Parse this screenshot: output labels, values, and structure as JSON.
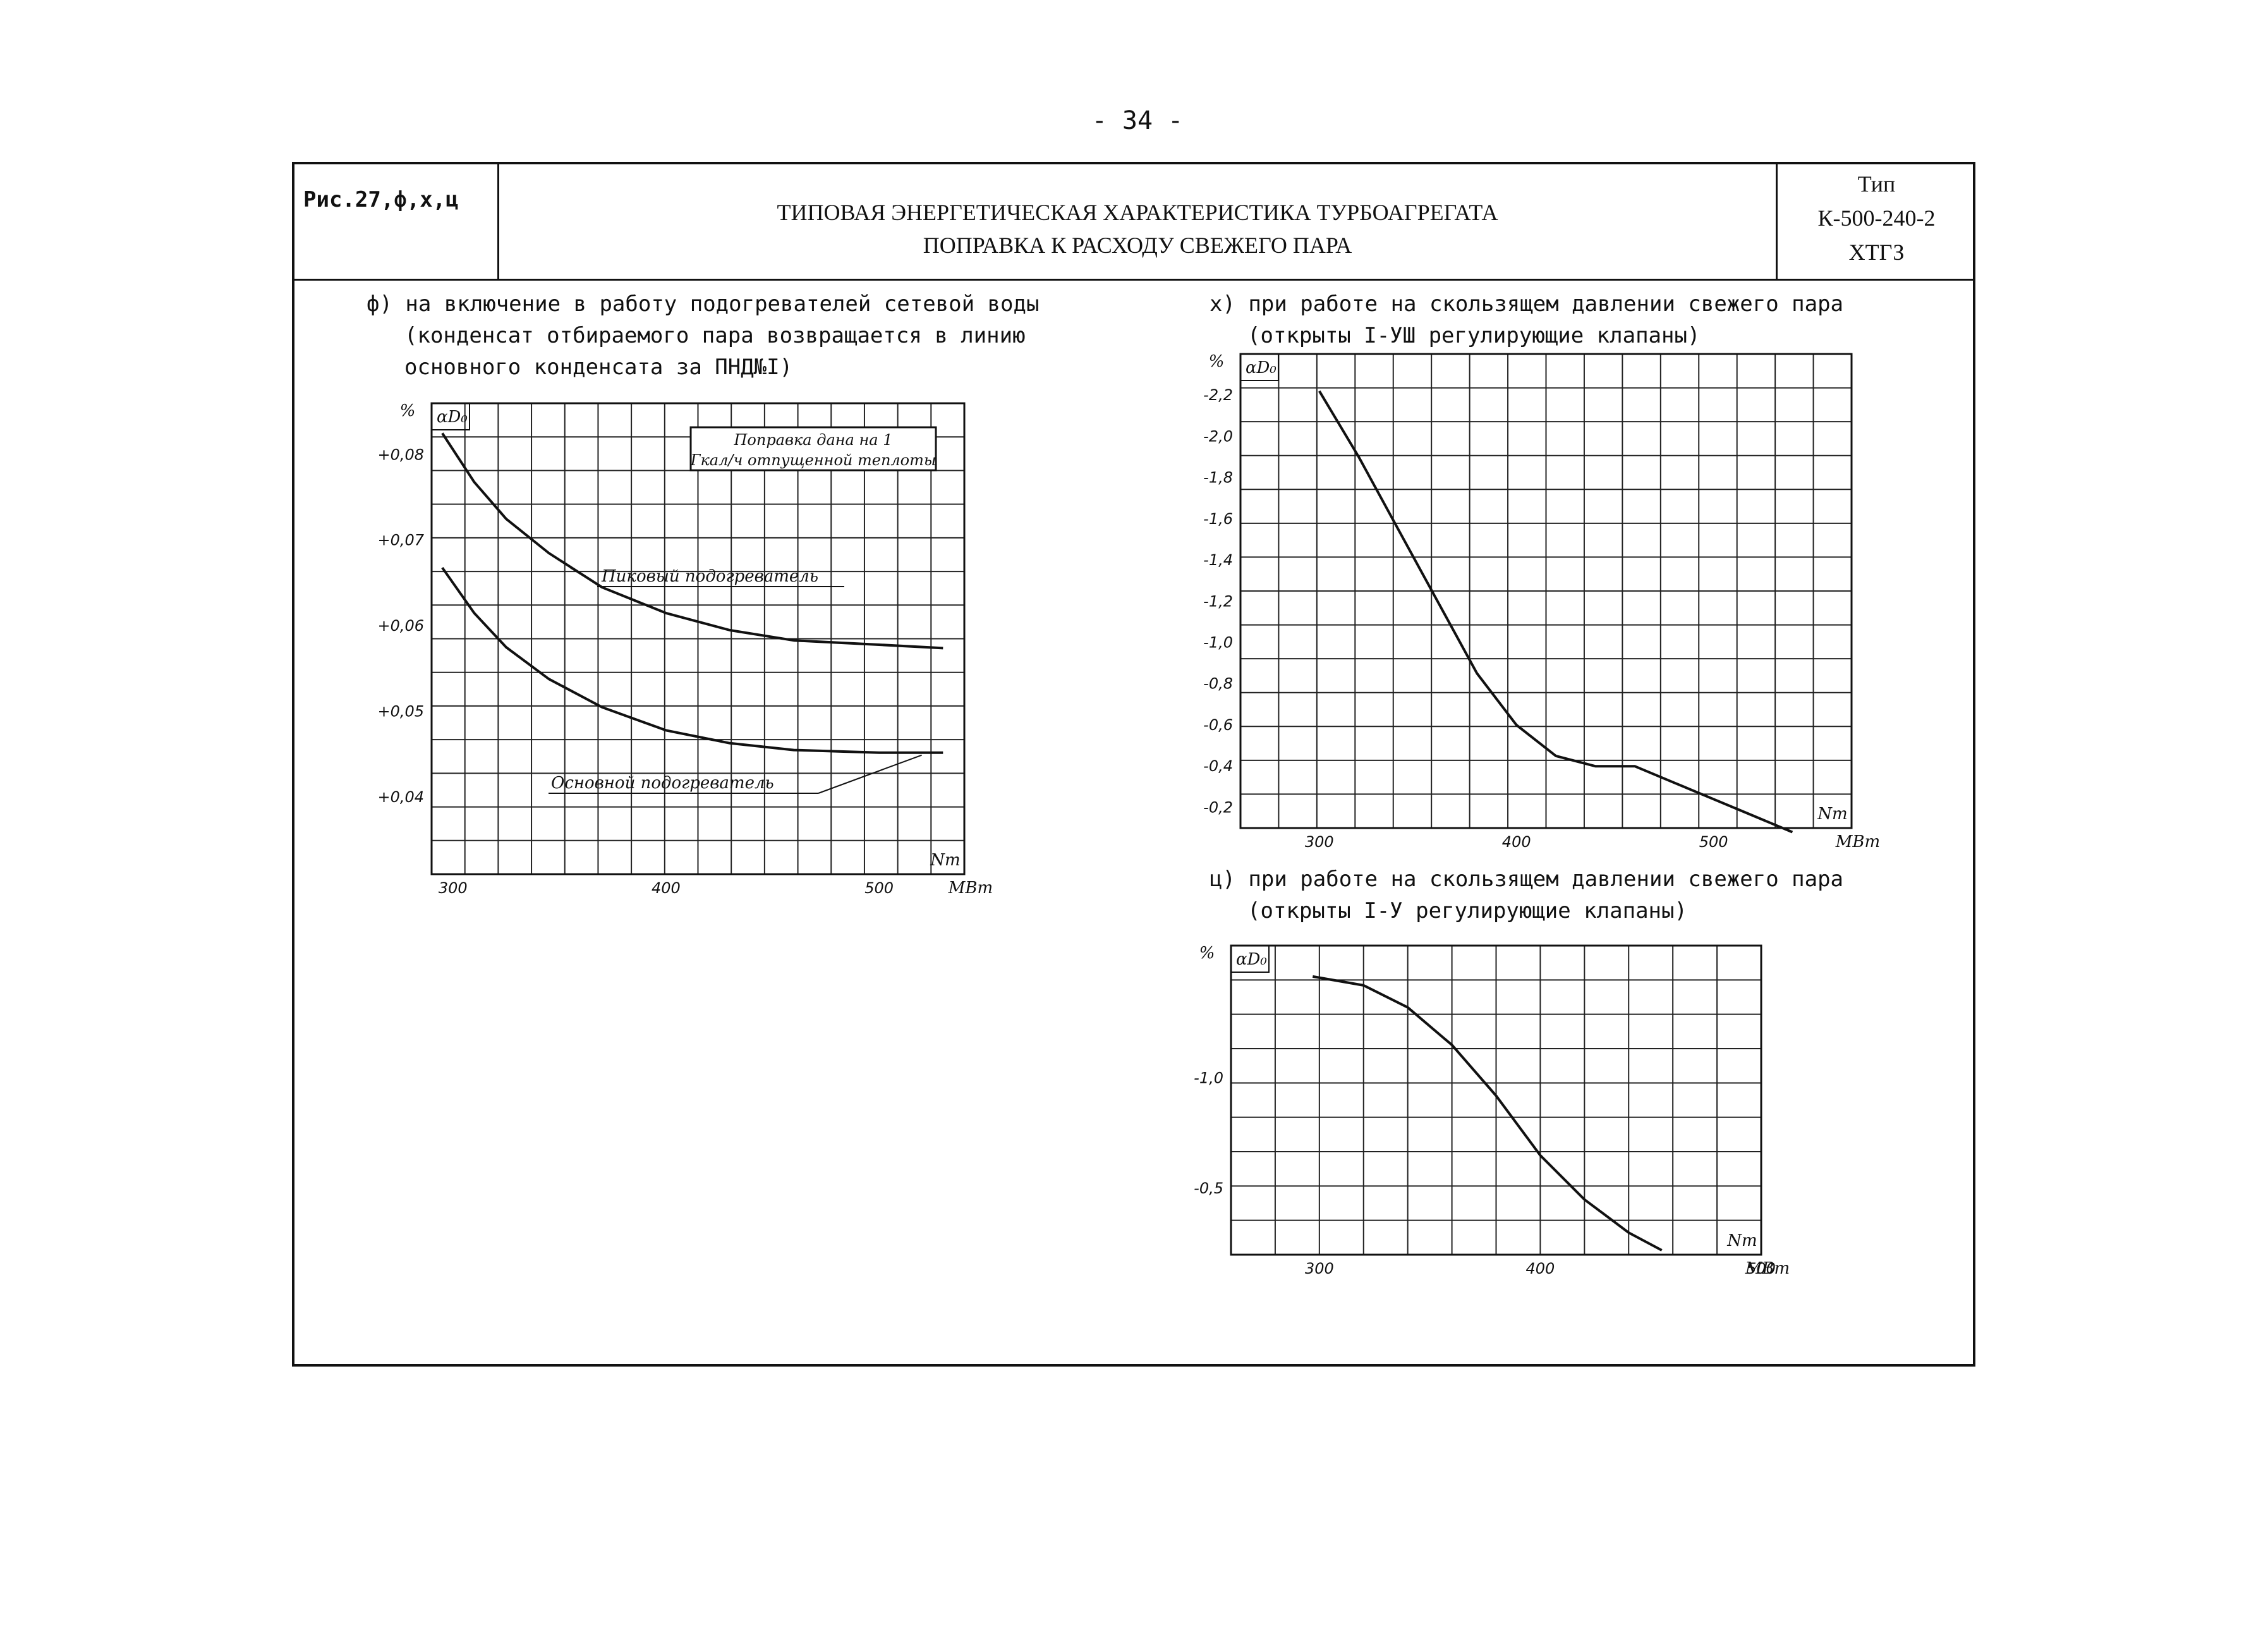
{
  "page_number": "- 34 -",
  "header": {
    "fig_ref": "Рис.27,ф,х,ц",
    "title_line1": "ТИПОВАЯ ЭНЕРГЕТИЧЕСКАЯ ХАРАКТЕРИСТИКА ТУРБОАГРЕГАТА",
    "title_line2": "ПОПРАВКА К РАСХОДУ СВЕЖЕГО ПАРА",
    "type_label": "Тип",
    "type_model": "К-500-240-2",
    "type_maker": "ХТГЗ"
  },
  "captions": {
    "f_line1": "ф) на включение в работу подогревателей сетевой воды",
    "f_line2": "(конденсат отбираемого пара возвращается в линию",
    "f_line3": "основного конденсата за ПНД№I)",
    "x_line1": "х) при работе на скользящем давлении свежего пара",
    "x_line2": "(открыты I-УШ регулирующие клапаны)",
    "c_line1": "ц) при работе на скользящем давлении свежего пара",
    "c_line2": "(открыты I-У регулирующие клапаны)"
  },
  "colors": {
    "ink": "#111111",
    "grid": "#222222",
    "paper": "#ffffff"
  },
  "chart_data": [
    {
      "id": "f",
      "type": "line",
      "y_unit": "%",
      "y_symbol": "αD₀",
      "x_symbol": "Nт",
      "x_unit": "МВт",
      "xlim": [
        290,
        540
      ],
      "ylim": [
        0.031,
        0.086
      ],
      "x_ticks": [
        300,
        400,
        500
      ],
      "x_tick_labels": [
        "300",
        "400",
        "500"
      ],
      "y_ticks": [
        0.04,
        0.05,
        0.06,
        0.07,
        0.08
      ],
      "y_tick_labels": [
        "+0,04",
        "+0,05",
        "+0,06",
        "+0,07",
        "+0,08"
      ],
      "grid": true,
      "note": "Поправка дана на 1 Гкал/ч отпущенной теплоты",
      "series": [
        {
          "name": "Пиковый подогреватель",
          "x": [
            295,
            310,
            325,
            345,
            370,
            400,
            430,
            460,
            500,
            530
          ],
          "y": [
            0.0825,
            0.0768,
            0.0725,
            0.0685,
            0.0645,
            0.0615,
            0.0595,
            0.0583,
            0.0578,
            0.0574
          ]
        },
        {
          "name": "Основной подогреватель",
          "x": [
            295,
            310,
            325,
            345,
            370,
            400,
            430,
            460,
            500,
            530
          ],
          "y": [
            0.0668,
            0.0615,
            0.0575,
            0.0538,
            0.0505,
            0.0478,
            0.0463,
            0.0455,
            0.0452,
            0.0452
          ]
        }
      ]
    },
    {
      "id": "x",
      "type": "line",
      "y_unit": "%",
      "y_symbol": "αD₀",
      "x_symbol": "Nт",
      "x_unit": "МВт",
      "xlim": [
        260,
        570
      ],
      "ylim": [
        -0.1,
        -2.4
      ],
      "x_ticks": [
        300,
        400,
        500
      ],
      "x_tick_labels": [
        "300",
        "400",
        "500"
      ],
      "y_ticks": [
        -0.2,
        -0.4,
        -0.6,
        -0.8,
        -1.0,
        -1.2,
        -1.4,
        -1.6,
        -1.8,
        -2.0,
        -2.2
      ],
      "y_tick_labels": [
        "-0,2",
        "-0,4",
        "-0,6",
        "-0,8",
        "-1,0",
        "-1,2",
        "-1,4",
        "-1,6",
        "-1,8",
        "-2,0",
        "-2,2"
      ],
      "grid": true,
      "series": [
        {
          "x": [
            300,
            320,
            340,
            360,
            380,
            400,
            420,
            440,
            460,
            480,
            500,
            520,
            540
          ],
          "y": [
            -2.22,
            -1.9,
            -1.55,
            -1.2,
            -0.85,
            -0.6,
            -0.45,
            -0.4,
            -0.4,
            -0.32,
            -0.24,
            -0.16,
            -0.08
          ]
        }
      ]
    },
    {
      "id": "c",
      "type": "line",
      "y_unit": "%",
      "y_symbol": "αD₀",
      "x_symbol": "Nт",
      "x_unit": "МВт",
      "xlim": [
        260,
        500
      ],
      "ylim": [
        -0.2,
        -1.6
      ],
      "x_ticks": [
        300,
        400,
        500
      ],
      "x_tick_labels": [
        "300",
        "400",
        "500"
      ],
      "y_ticks": [
        -1.0,
        -0.5
      ],
      "y_tick_labels": [
        "-1,0",
        "-0,5"
      ],
      "grid": true,
      "series": [
        {
          "x": [
            297,
            320,
            340,
            360,
            380,
            400,
            420,
            440,
            455
          ],
          "y": [
            -1.46,
            -1.42,
            -1.32,
            -1.15,
            -0.92,
            -0.65,
            -0.45,
            -0.3,
            -0.22
          ]
        }
      ]
    }
  ]
}
